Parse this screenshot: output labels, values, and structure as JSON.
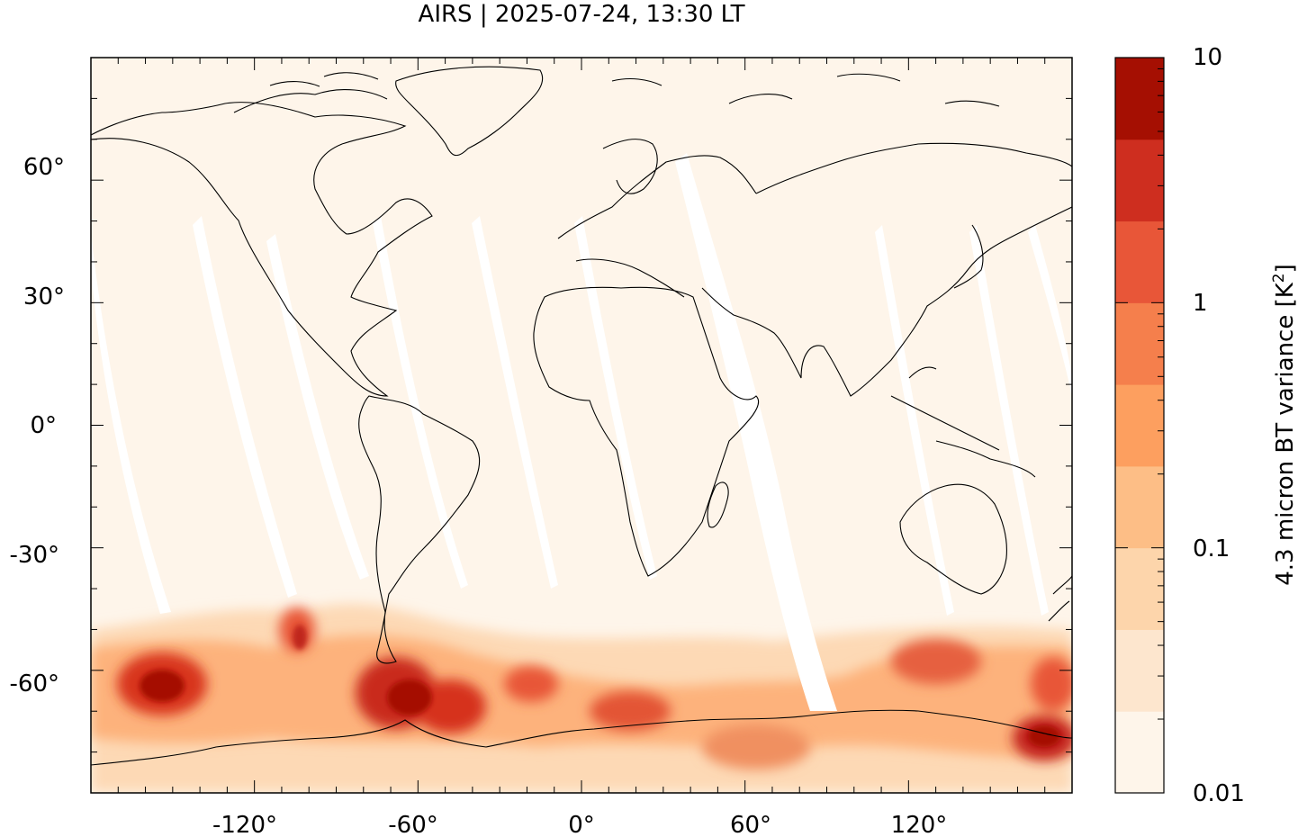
{
  "title": "AIRS | 2025-07-24, 13:30 LT",
  "map": {
    "projection": "equirectangular",
    "lon_range": [
      -180,
      180
    ],
    "lat_range": [
      -90,
      90
    ],
    "lon_ticks": [
      -120,
      -60,
      0,
      60,
      120
    ],
    "lon_tick_labels": [
      "-120°",
      "-60°",
      "0°",
      "60°",
      "120°"
    ],
    "lat_ticks": [
      60,
      30,
      0,
      -30,
      -60
    ],
    "lat_tick_labels": [
      "60°",
      "30°",
      "0°",
      "-30°",
      "-60°"
    ],
    "background_color": "#fef5ea",
    "coastlines": true
  },
  "colorbar": {
    "label": "4.3 micron BT variance [K",
    "label_superscript": "2",
    "label_suffix": "]",
    "scale": "log",
    "range": [
      0.01,
      10
    ],
    "tick_values": [
      10,
      1,
      0.1,
      0.01
    ],
    "tick_labels": [
      "10",
      "1",
      "0.1",
      "0.01"
    ],
    "colors": [
      "#fef5ea",
      "#fde6ce",
      "#fdd5ab",
      "#fdbe86",
      "#fd9f5f",
      "#f57f4c",
      "#e85638",
      "#ce2e1f",
      "#a50f02"
    ]
  },
  "chart_data": {
    "type": "heatmap",
    "title": "AIRS | 2025-07-24, 13:30 LT",
    "xlabel": "",
    "ylabel": "",
    "x_range": [
      -180,
      180
    ],
    "y_range": [
      -90,
      90
    ],
    "z_label": "4.3 micron BT variance [K2]",
    "z_range": [
      0.01,
      10
    ],
    "z_scale": "log",
    "regions": [
      {
        "lon": -150,
        "lat": -62,
        "value": 5
      },
      {
        "lon": -100,
        "lat": -55,
        "value": 2
      },
      {
        "lon": -65,
        "lat": -65,
        "value": 6
      },
      {
        "lon": -55,
        "lat": -68,
        "value": 4
      },
      {
        "lon": -20,
        "lat": -63,
        "value": 2
      },
      {
        "lon": 15,
        "lat": -70,
        "value": 2
      },
      {
        "lon": 125,
        "lat": -58,
        "value": 2
      },
      {
        "lon": 165,
        "lat": -76,
        "value": 6
      },
      {
        "lon": 160,
        "lat": -63,
        "value": 1
      }
    ]
  }
}
